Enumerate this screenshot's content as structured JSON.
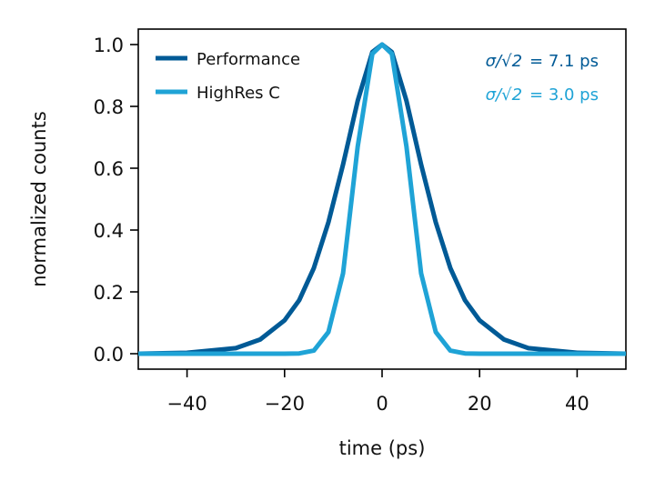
{
  "chart_data": {
    "type": "line",
    "title": "",
    "xlabel": "time (ps)",
    "ylabel": "normalized counts",
    "xlim": [
      -50,
      50
    ],
    "ylim": [
      -0.05,
      1.05
    ],
    "xticks": [
      -40,
      -20,
      0,
      20,
      40
    ],
    "xtick_labels": [
      "−40",
      "−20",
      "0",
      "20",
      "40"
    ],
    "yticks": [
      0.0,
      0.2,
      0.4,
      0.6,
      0.8,
      1.0
    ],
    "ytick_labels": [
      "0.0",
      "0.2",
      "0.4",
      "0.6",
      "0.8",
      "1.0"
    ],
    "grid": false,
    "legend_position": "top-left",
    "x": [
      -50,
      -40,
      -30,
      -25,
      -20,
      -17,
      -14,
      -11,
      -8,
      -5,
      -2,
      0,
      2,
      5,
      8,
      11,
      14,
      17,
      20,
      25,
      30,
      40,
      50
    ],
    "series": [
      {
        "name": "Performance",
        "color": "#005a96",
        "sigma_label": "σ/√2",
        "sigma_value": "= 7.1 ps",
        "values": [
          0.0,
          0.003,
          0.018,
          0.046,
          0.108,
          0.173,
          0.277,
          0.425,
          0.612,
          0.818,
          0.976,
          1.0,
          0.976,
          0.818,
          0.612,
          0.425,
          0.277,
          0.173,
          0.108,
          0.046,
          0.018,
          0.003,
          0.0
        ]
      },
      {
        "name": "HighRes C",
        "color": "#1fa3d6",
        "sigma_label": "σ/√2",
        "sigma_value": "= 3.0 ps",
        "values": [
          0.0,
          0.0,
          0.0,
          0.0,
          0.0,
          0.001,
          0.01,
          0.07,
          0.26,
          0.67,
          0.97,
          1.0,
          0.97,
          0.67,
          0.26,
          0.07,
          0.01,
          0.001,
          0.0,
          0.0,
          0.0,
          0.0,
          0.0
        ]
      }
    ]
  }
}
